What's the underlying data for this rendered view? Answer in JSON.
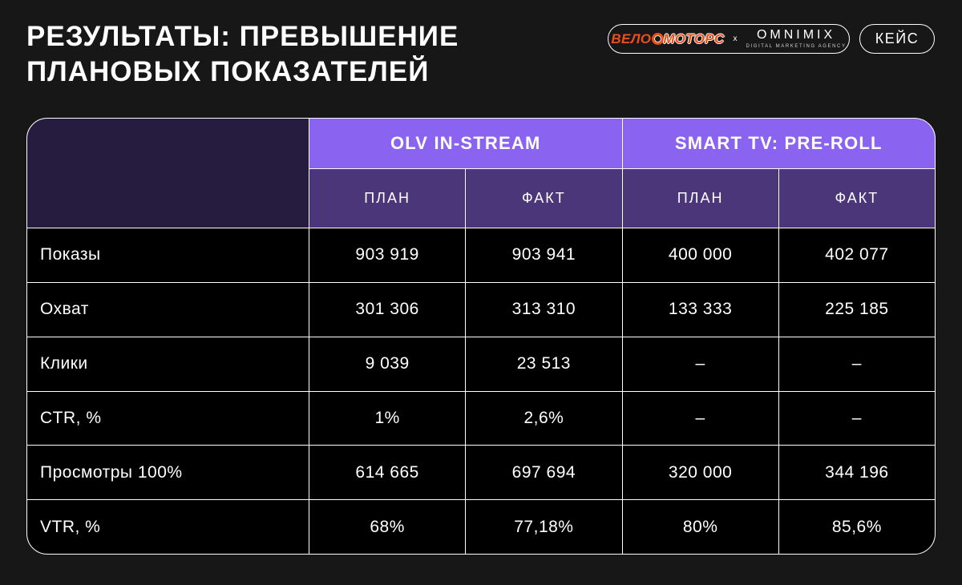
{
  "header": {
    "title_line1": "РЕЗУЛЬТАТЫ: ПРЕВЫШЕНИЕ",
    "title_line2": "ПЛАНОВЫХ ПОКАЗАТЕЛЕЙ",
    "brand": {
      "velo": "ВЕЛО",
      "motors": "МОТОРС",
      "multiply": "x",
      "omnimix": "OMNIMIX",
      "omnimix_sub": "DIGITAL MARKETING AGENCY"
    },
    "case_badge": "КЕЙС"
  },
  "table": {
    "groups": [
      {
        "label": "OLV IN-STREAM"
      },
      {
        "label": "SMART TV: PRE-ROLL"
      }
    ],
    "sub_headers": [
      "ПЛАН",
      "ФАКТ",
      "ПЛАН",
      "ФАКТ"
    ],
    "rows": [
      {
        "label": "Показы",
        "values": [
          "903 919",
          "903 941",
          "400 000",
          "402 077"
        ]
      },
      {
        "label": "Охват",
        "values": [
          "301 306",
          "313 310",
          "133 333",
          "225 185"
        ]
      },
      {
        "label": "Клики",
        "values": [
          "9 039",
          "23 513",
          "–",
          "–"
        ]
      },
      {
        "label": "CTR, %",
        "values": [
          "1%",
          "2,6%",
          "–",
          "–"
        ]
      },
      {
        "label": "Просмотры 100%",
        "values": [
          "614 665",
          "697 694",
          "320 000",
          "344 196"
        ]
      },
      {
        "label": "VTR, %",
        "values": [
          "68%",
          "77,18%",
          "80%",
          "85,6%"
        ]
      }
    ]
  },
  "colors": {
    "background": "#171717",
    "table_cell": "#000000",
    "group_header": "#8a64f0",
    "sub_header": "#4a3679",
    "corner_cell": "#251c40",
    "grid_lines": "#ffffff",
    "brand_orange": "#e8511c",
    "text": "#ffffff"
  }
}
